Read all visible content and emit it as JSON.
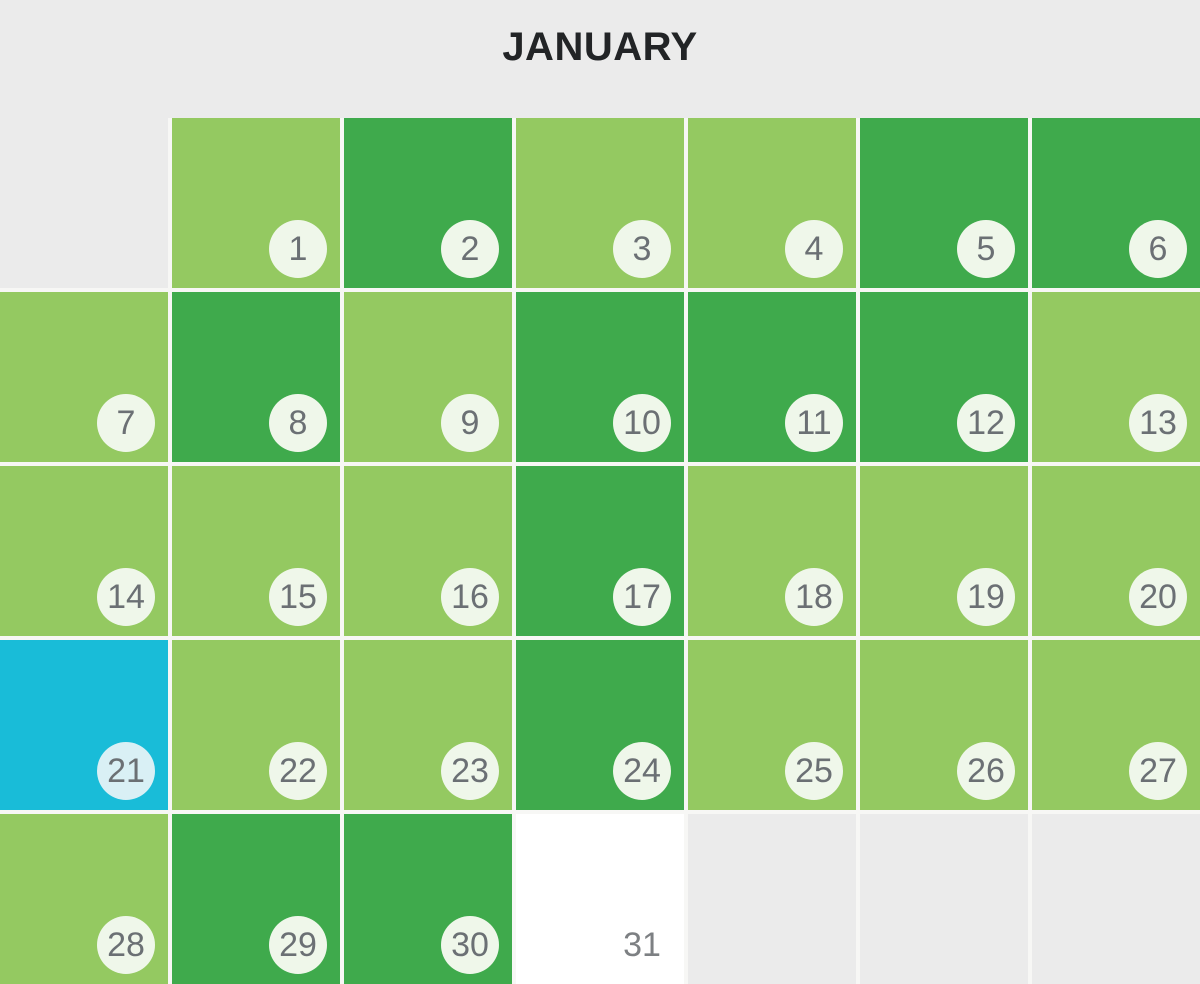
{
  "header": {
    "title": "JANUARY"
  },
  "colors": {
    "page_background": "#EBEBEB",
    "grid_gap": "#F7F7F5",
    "light_green": "#94C961",
    "dark_green": "#3FAA4C",
    "cyan": "#19BCD8",
    "white_cell": "#FFFFFF",
    "empty_cell": "#EBEBEB",
    "badge_on_green": "#EFF7EA",
    "badge_on_cyan": "#D9F0F5",
    "day_number": "#6B7074",
    "day_number_on_white": "#7D8083",
    "title_text": "#222426"
  },
  "calendar": {
    "columns": 7,
    "rows": 5,
    "cells": [
      {
        "shade": "empty"
      },
      {
        "day": "1",
        "shade": "light",
        "badge": true
      },
      {
        "day": "2",
        "shade": "dark",
        "badge": true
      },
      {
        "day": "3",
        "shade": "light",
        "badge": true
      },
      {
        "day": "4",
        "shade": "light",
        "badge": true
      },
      {
        "day": "5",
        "shade": "dark",
        "badge": true
      },
      {
        "day": "6",
        "shade": "dark",
        "badge": true
      },
      {
        "day": "7",
        "shade": "light",
        "badge": true
      },
      {
        "day": "8",
        "shade": "dark",
        "badge": true
      },
      {
        "day": "9",
        "shade": "light",
        "badge": true
      },
      {
        "day": "10",
        "shade": "dark",
        "badge": true
      },
      {
        "day": "11",
        "shade": "dark",
        "badge": true
      },
      {
        "day": "12",
        "shade": "dark",
        "badge": true
      },
      {
        "day": "13",
        "shade": "light",
        "badge": true
      },
      {
        "day": "14",
        "shade": "light",
        "badge": true
      },
      {
        "day": "15",
        "shade": "light",
        "badge": true
      },
      {
        "day": "16",
        "shade": "light",
        "badge": true
      },
      {
        "day": "17",
        "shade": "dark",
        "badge": true
      },
      {
        "day": "18",
        "shade": "light",
        "badge": true
      },
      {
        "day": "19",
        "shade": "light",
        "badge": true
      },
      {
        "day": "20",
        "shade": "light",
        "badge": true
      },
      {
        "day": "21",
        "shade": "cyan",
        "badge": true
      },
      {
        "day": "22",
        "shade": "light",
        "badge": true
      },
      {
        "day": "23",
        "shade": "light",
        "badge": true
      },
      {
        "day": "24",
        "shade": "dark",
        "badge": true
      },
      {
        "day": "25",
        "shade": "light",
        "badge": true
      },
      {
        "day": "26",
        "shade": "light",
        "badge": true
      },
      {
        "day": "27",
        "shade": "light",
        "badge": true
      },
      {
        "day": "28",
        "shade": "light",
        "badge": true
      },
      {
        "day": "29",
        "shade": "dark",
        "badge": true
      },
      {
        "day": "30",
        "shade": "dark",
        "badge": true
      },
      {
        "day": "31",
        "shade": "white",
        "badge": false
      },
      {
        "shade": "empty"
      },
      {
        "shade": "empty"
      },
      {
        "shade": "empty"
      }
    ]
  }
}
